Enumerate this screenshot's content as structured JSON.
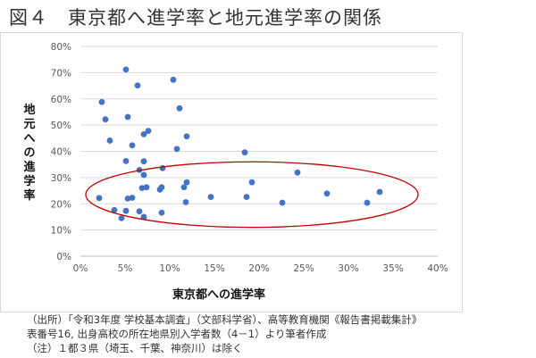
{
  "figure": {
    "title": "図４　東京都へ進学率と地元進学率の関係"
  },
  "chart_data": {
    "type": "scatter",
    "title": "",
    "xlabel": "東京都への進学率",
    "ylabel": "地元への進学率",
    "xlim": [
      0,
      40
    ],
    "ylim": [
      0,
      80
    ],
    "x_ticks": [
      "0%",
      "5%",
      "10%",
      "15%",
      "20%",
      "25%",
      "30%",
      "35%",
      "40%"
    ],
    "y_ticks": [
      "0%",
      "10%",
      "20%",
      "30%",
      "40%",
      "50%",
      "60%",
      "70%",
      "80%"
    ],
    "grid": "horizontal",
    "series_color": "#4472c4",
    "annotation": {
      "shape": "ellipse",
      "color": "#c00000",
      "x_range": [
        0.6,
        37.8
      ],
      "y_range": [
        11,
        36
      ]
    },
    "points": [
      {
        "x": 5.1,
        "y": 71.2
      },
      {
        "x": 6.4,
        "y": 65.1
      },
      {
        "x": 10.4,
        "y": 67.3
      },
      {
        "x": 2.4,
        "y": 58.8
      },
      {
        "x": 2.8,
        "y": 52.2
      },
      {
        "x": 5.3,
        "y": 53.1
      },
      {
        "x": 11.1,
        "y": 56.4
      },
      {
        "x": 3.3,
        "y": 44.1
      },
      {
        "x": 5.8,
        "y": 42.3
      },
      {
        "x": 7.1,
        "y": 46.5
      },
      {
        "x": 7.6,
        "y": 47.8
      },
      {
        "x": 11.9,
        "y": 45.7
      },
      {
        "x": 10.8,
        "y": 40.9
      },
      {
        "x": 18.4,
        "y": 39.6
      },
      {
        "x": 5.1,
        "y": 36.3
      },
      {
        "x": 7.1,
        "y": 36.2
      },
      {
        "x": 6.6,
        "y": 32.9
      },
      {
        "x": 7.1,
        "y": 31.0
      },
      {
        "x": 9.2,
        "y": 33.6
      },
      {
        "x": 24.3,
        "y": 31.9
      },
      {
        "x": 11.9,
        "y": 28.2
      },
      {
        "x": 19.2,
        "y": 28.2
      },
      {
        "x": 9.1,
        "y": 26.3
      },
      {
        "x": 8.9,
        "y": 25.4
      },
      {
        "x": 11.6,
        "y": 26.3
      },
      {
        "x": 6.9,
        "y": 26.0
      },
      {
        "x": 7.4,
        "y": 26.3
      },
      {
        "x": 2.1,
        "y": 22.2
      },
      {
        "x": 5.3,
        "y": 22.0
      },
      {
        "x": 5.8,
        "y": 22.3
      },
      {
        "x": 14.6,
        "y": 22.6
      },
      {
        "x": 18.6,
        "y": 22.6
      },
      {
        "x": 27.6,
        "y": 23.9
      },
      {
        "x": 33.5,
        "y": 24.5
      },
      {
        "x": 11.8,
        "y": 20.6
      },
      {
        "x": 22.6,
        "y": 20.4
      },
      {
        "x": 32.1,
        "y": 20.4
      },
      {
        "x": 3.8,
        "y": 17.6
      },
      {
        "x": 5.1,
        "y": 17.3
      },
      {
        "x": 6.6,
        "y": 17.1
      },
      {
        "x": 9.1,
        "y": 16.6
      },
      {
        "x": 4.6,
        "y": 14.5
      },
      {
        "x": 7.1,
        "y": 15.0
      }
    ]
  },
  "notes": [
    "（出所）「令和3年度 学校基本調査」（文部科学省）、高等教育機関《報告書掲載集計》",
    "表番号16, 出身高校の所在地県別入学者数（4－1）より筆者作成",
    "（注）１都３県（埼玉、千葉、神奈川）は除く"
  ]
}
